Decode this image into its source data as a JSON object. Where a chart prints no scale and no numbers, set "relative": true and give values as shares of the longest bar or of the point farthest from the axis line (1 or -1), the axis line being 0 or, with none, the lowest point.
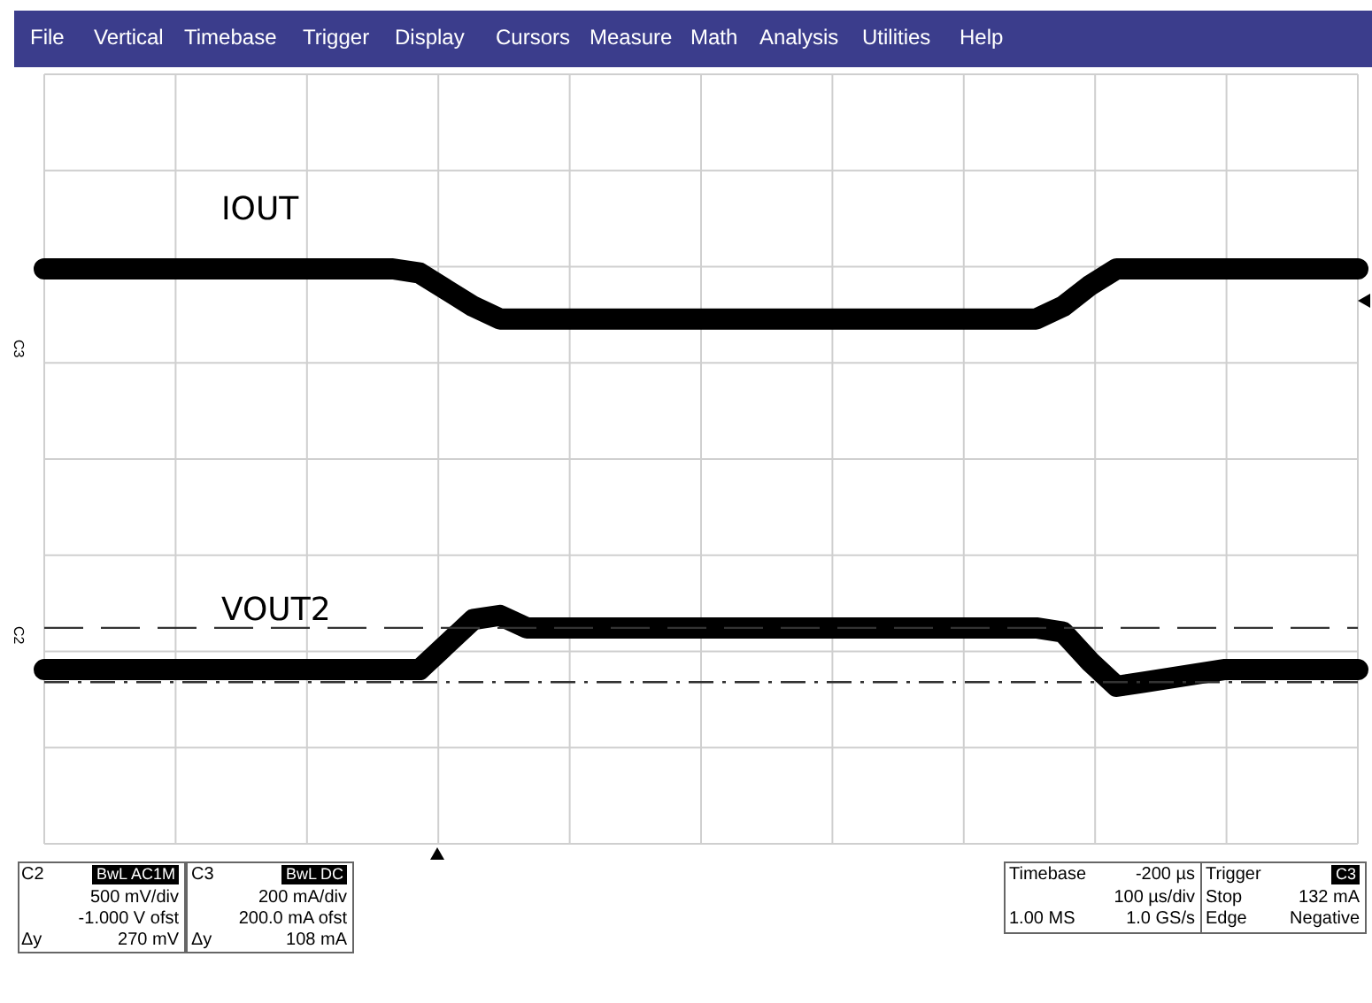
{
  "chart_data": {
    "type": "line",
    "relative": true,
    "grid": true,
    "legend": false,
    "marker": "none",
    "line_style": "solid",
    "categories": [
      null,
      null,
      null,
      null,
      null,
      null,
      null,
      null,
      null,
      null,
      null,
      null,
      null,
      null,
      null,
      null,
      null,
      null,
      null,
      null,
      null,
      null,
      null,
      null,
      null,
      null,
      null,
      null,
      null,
      null,
      null,
      null,
      null,
      null,
      null,
      null,
      null,
      null,
      null,
      null,
      null,
      null,
      null,
      null,
      null,
      null,
      null,
      null,
      null,
      null
    ],
    "series": [
      {
        "name": "IOUT",
        "color": "#000000",
        "values": [
          1,
          1,
          1,
          1,
          1,
          1,
          1,
          1,
          1,
          1,
          1,
          1,
          1,
          1,
          0.99,
          0.95,
          0.91,
          0.88,
          0.88,
          0.88,
          0.88,
          0.88,
          0.88,
          0.88,
          0.88,
          0.88,
          0.88,
          0.88,
          0.88,
          0.88,
          0.88,
          0.88,
          0.88,
          0.88,
          0.88,
          0.88,
          0.88,
          0.88,
          0.91,
          0.96,
          1,
          1,
          1,
          1,
          1,
          1,
          1,
          1,
          1,
          1
        ]
      },
      {
        "name": "VOUT2",
        "color": "#000000",
        "values": [
          0.04,
          0.04,
          0.04,
          0.04,
          0.04,
          0.04,
          0.04,
          0.04,
          0.04,
          0.04,
          0.04,
          0.04,
          0.04,
          0.04,
          0.04,
          0.1,
          0.16,
          0.17,
          0.14,
          0.14,
          0.14,
          0.14,
          0.14,
          0.14,
          0.14,
          0.14,
          0.14,
          0.14,
          0.14,
          0.14,
          0.14,
          0.14,
          0.14,
          0.14,
          0.14,
          0.14,
          0.14,
          0.14,
          0.13,
          0.06,
          0,
          0.01,
          0.02,
          0.03,
          0.04,
          0.04,
          0.04,
          0.04,
          0.04,
          0.04
        ]
      }
    ],
    "ref_lines": [
      {
        "axis": "y",
        "value": 0.14,
        "line_style": "dashed",
        "color": "#333333"
      },
      {
        "axis": "y",
        "value": 0.01,
        "line_style": "dotted",
        "color": "#333333"
      }
    ],
    "annotations": [
      "File",
      "Vertical",
      "Timebase",
      "Trigger",
      "Display",
      "Cursors",
      "Measure",
      "Math",
      "Analysis",
      "Utilities",
      "Help",
      "C3",
      "C2",
      "C2",
      "BwL",
      "AC1M",
      "500 mV/div",
      "-1.000 V ofst",
      "Δy",
      "270 mV",
      "C3",
      "BwL",
      "DC",
      "200 mA/div",
      "200.0 mA ofst",
      "Δy",
      "108 mA",
      "Timebase",
      "-200 µs",
      "100 µs/div",
      "1.00 MS",
      "1.0 GS/s",
      "Trigger",
      "C3",
      "Stop",
      "132 mA",
      "Edge",
      "Negative"
    ]
  }
}
